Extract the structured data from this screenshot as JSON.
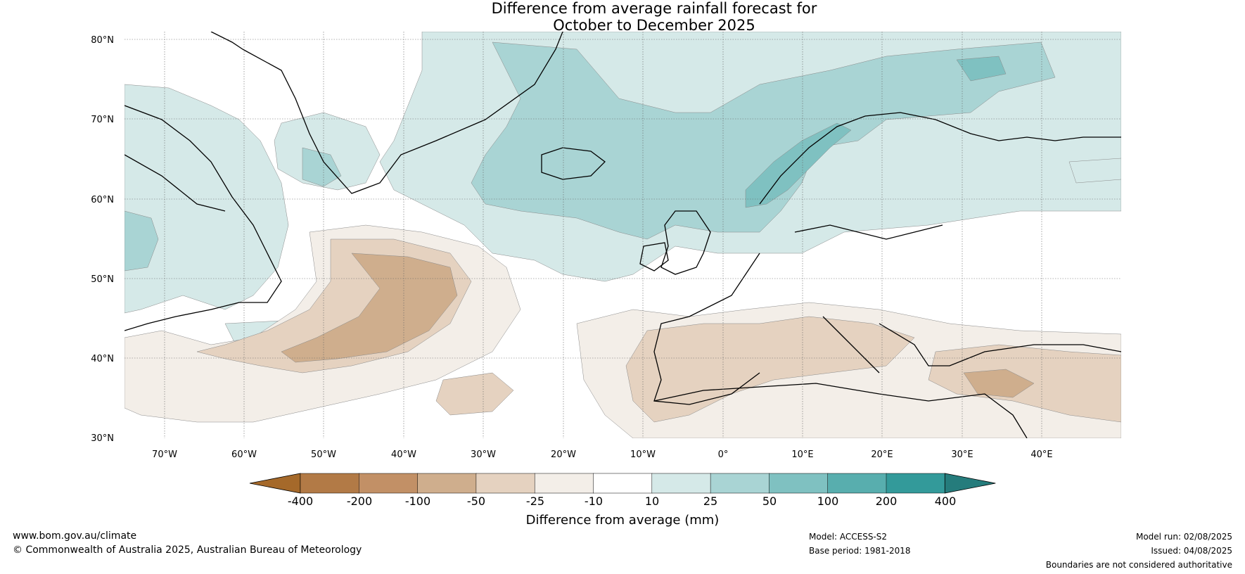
{
  "title": {
    "line1": "Difference from average rainfall forecast for",
    "line2": "October to December 2025"
  },
  "map": {
    "lat_labels": [
      "80°N",
      "70°N",
      "60°N",
      "50°N",
      "40°N",
      "30°N"
    ],
    "lon_labels": [
      "70°W",
      "60°W",
      "50°W",
      "40°W",
      "30°W",
      "20°W",
      "10°W",
      "0°",
      "10°E",
      "20°E",
      "30°E",
      "40°E"
    ],
    "extent": {
      "lon_min": -75,
      "lon_max": 50,
      "lat_min": 30,
      "lat_max": 81
    },
    "colors": {
      "dry_strong": "#cfae8d",
      "dry_moderate": "#e5d2c0",
      "dry_weak": "#f3eee8",
      "wet_weak": "#d5e9e8",
      "wet_moderate": "#a9d4d4",
      "wet_strong": "#7fc1c1"
    }
  },
  "colorbar": {
    "labels": [
      "-400",
      "-200",
      "-100",
      "-50",
      "-25",
      "-10",
      "10",
      "25",
      "50",
      "100",
      "200",
      "400"
    ],
    "colors": [
      "#a5692a",
      "#b27a46",
      "#c29066",
      "#cfae8d",
      "#e5d2c0",
      "#f3eee8",
      "#ffffff",
      "#d5e9e8",
      "#a9d4d4",
      "#7fc1c1",
      "#58aeae",
      "#339a9a",
      "#257c7c"
    ],
    "title": "Difference from average (mm)"
  },
  "footer": {
    "website": "www.bom.gov.au/climate",
    "copyright": "© Commonwealth of Australia 2025, Australian Bureau of Meteorology",
    "model": "Model: ACCESS-S2",
    "base_period": "Base period: 1981-2018",
    "model_run": "Model run: 02/08/2025",
    "issued": "Issued: 04/08/2025",
    "disclaimer": "Boundaries are not considered authoritative"
  }
}
